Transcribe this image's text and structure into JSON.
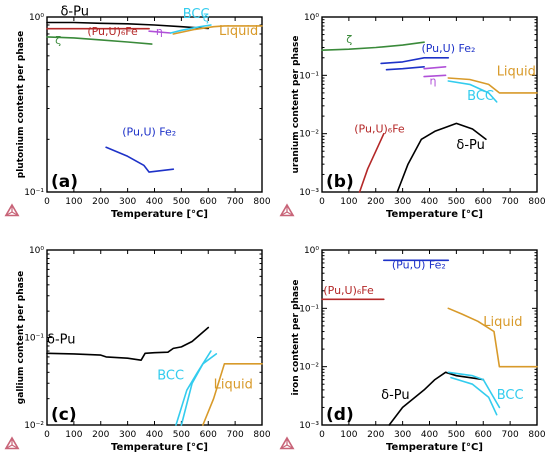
{
  "colors": {
    "delta_pu": "#000000",
    "bcc": "#33ccee",
    "liquid": "#d89a2a",
    "pu_u_6fe": "#b42828",
    "pu_u_fe2": "#1e32c8",
    "eta": "#b050d8",
    "zeta": "#3a8a3a",
    "logo": "#c86478"
  },
  "logo_icon": "thermo-calc-triangle-icon",
  "chart_data": [
    {
      "type": "line",
      "panel": "(a)",
      "xlabel": "Temperature [°C]",
      "ylabel": "plutonium content per phase",
      "xlim": [
        0,
        800
      ],
      "ylim": [
        0.1,
        1
      ],
      "yscale": "log",
      "xticks": [
        0,
        100,
        200,
        300,
        400,
        500,
        600,
        700,
        800
      ],
      "yticks": [
        {
          "v": 1,
          "label": "10⁰"
        },
        {
          "v": 0.1,
          "label": "10⁻¹"
        }
      ],
      "series": [
        {
          "key": "delta_pu",
          "points": [
            [
              0,
              0.93
            ],
            [
              100,
              0.93
            ],
            [
              200,
              0.92
            ],
            [
              300,
              0.915
            ],
            [
              400,
              0.9
            ],
            [
              500,
              0.88
            ],
            [
              600,
              0.86
            ]
          ]
        },
        {
          "key": "pu_u_6fe",
          "points": [
            [
              0,
              0.857
            ],
            [
              380,
              0.857
            ]
          ]
        },
        {
          "key": "eta",
          "points": [
            [
              380,
              0.83
            ],
            [
              460,
              0.81
            ]
          ]
        },
        {
          "key": "zeta",
          "points": [
            [
              0,
              0.77
            ],
            [
              100,
              0.76
            ],
            [
              200,
              0.74
            ],
            [
              300,
              0.72
            ],
            [
              390,
              0.7
            ]
          ]
        },
        {
          "key": "bcc",
          "points": [
            [
              460,
              0.81
            ],
            [
              500,
              0.84
            ],
            [
              570,
              0.88
            ],
            [
              610,
              0.9
            ]
          ]
        },
        {
          "key": "liquid",
          "points": [
            [
              470,
              0.8
            ],
            [
              550,
              0.85
            ],
            [
              620,
              0.88
            ],
            [
              660,
              0.89
            ],
            [
              800,
              0.89
            ]
          ]
        },
        {
          "key": "pu_u_fe2",
          "points": [
            [
              220,
              0.18
            ],
            [
              300,
              0.16
            ],
            [
              360,
              0.142
            ],
            [
              380,
              0.13
            ],
            [
              470,
              0.135
            ]
          ]
        }
      ],
      "annotations": [
        {
          "text": "δ-Pu",
          "key": "delta_pu",
          "x": 50,
          "y": 1.02,
          "size": "big"
        },
        {
          "text": "BCC",
          "key": "bcc",
          "x": 505,
          "y": 0.99,
          "size": "big"
        },
        {
          "text": "ζ",
          "key": "bcc",
          "x": 580,
          "y": 0.94,
          "size": "normal"
        },
        {
          "text": "(Pu,U)₆Fe",
          "key": "pu_u_6fe",
          "x": 150,
          "y": 0.79,
          "size": "normal"
        },
        {
          "text": "η",
          "key": "eta",
          "x": 405,
          "y": 0.79,
          "size": "normal"
        },
        {
          "text": "Liquid",
          "key": "liquid",
          "x": 640,
          "y": 0.79,
          "size": "big"
        },
        {
          "text": "ζ",
          "key": "zeta",
          "x": 30,
          "y": 0.7,
          "size": "normal"
        },
        {
          "text": "(Pu,U) Fe₂",
          "key": "pu_u_fe2",
          "x": 280,
          "y": 0.21,
          "size": "normal"
        }
      ]
    },
    {
      "type": "line",
      "panel": "(b)",
      "xlabel": "Temperature [°C]",
      "ylabel": "uranium content per phase",
      "xlim": [
        0,
        800
      ],
      "ylim": [
        0.001,
        1
      ],
      "yscale": "log",
      "xticks": [
        0,
        100,
        200,
        300,
        400,
        500,
        600,
        700,
        800
      ],
      "yticks": [
        {
          "v": 1,
          "label": "10⁰"
        },
        {
          "v": 0.1,
          "label": "10⁻¹"
        },
        {
          "v": 0.01,
          "label": "10⁻²"
        },
        {
          "v": 0.001,
          "label": "10⁻³"
        }
      ],
      "series": [
        {
          "key": "zeta",
          "points": [
            [
              0,
              0.27
            ],
            [
              100,
              0.28
            ],
            [
              200,
              0.3
            ],
            [
              300,
              0.33
            ],
            [
              380,
              0.37
            ]
          ]
        },
        {
          "key": "pu_u_fe2",
          "points": [
            [
              220,
              0.16
            ],
            [
              300,
              0.17
            ],
            [
              380,
              0.2
            ],
            [
              470,
              0.2
            ]
          ]
        },
        {
          "key": "pu_u_fe2",
          "points": [
            [
              240,
              0.125
            ],
            [
              300,
              0.13
            ],
            [
              380,
              0.14
            ]
          ]
        },
        {
          "key": "eta",
          "points": [
            [
              380,
              0.13
            ],
            [
              460,
              0.14
            ]
          ]
        },
        {
          "key": "eta",
          "points": [
            [
              380,
              0.095
            ],
            [
              460,
              0.1
            ]
          ]
        },
        {
          "key": "liquid",
          "points": [
            [
              470,
              0.09
            ],
            [
              550,
              0.085
            ],
            [
              620,
              0.07
            ],
            [
              660,
              0.05
            ],
            [
              800,
              0.05
            ]
          ]
        },
        {
          "key": "bcc",
          "points": [
            [
              470,
              0.08
            ],
            [
              550,
              0.07
            ],
            [
              620,
              0.05
            ],
            [
              650,
              0.035
            ]
          ]
        },
        {
          "key": "pu_u_6fe",
          "points": [
            [
              140,
              0.001
            ],
            [
              170,
              0.0025
            ],
            [
              200,
              0.005
            ],
            [
              230,
              0.01
            ]
          ]
        },
        {
          "key": "delta_pu",
          "points": [
            [
              280,
              0.001
            ],
            [
              320,
              0.003
            ],
            [
              370,
              0.008
            ],
            [
              420,
              0.011
            ],
            [
              500,
              0.015
            ],
            [
              560,
              0.012
            ],
            [
              610,
              0.008
            ]
          ]
        }
      ],
      "annotations": [
        {
          "text": "ζ",
          "key": "zeta",
          "x": 90,
          "y": 0.36,
          "size": "normal"
        },
        {
          "text": "(Pu,U) Fe₂",
          "key": "pu_u_fe2",
          "x": 370,
          "y": 0.25,
          "size": "normal"
        },
        {
          "text": "Liquid",
          "key": "liquid",
          "x": 650,
          "y": 0.1,
          "size": "big"
        },
        {
          "text": "η",
          "key": "eta",
          "x": 400,
          "y": 0.07,
          "size": "normal"
        },
        {
          "text": "BCC",
          "key": "bcc",
          "x": 540,
          "y": 0.038,
          "size": "big"
        },
        {
          "text": "(Pu,U)₆Fe",
          "key": "pu_u_6fe",
          "x": 120,
          "y": 0.0105,
          "size": "normal"
        },
        {
          "text": "δ-Pu",
          "key": "delta_pu",
          "x": 500,
          "y": 0.0055,
          "size": "big"
        }
      ]
    },
    {
      "type": "line",
      "panel": "(c)",
      "xlabel": "Temperature [°C]",
      "ylabel": "gallium content per phase",
      "xlim": [
        0,
        800
      ],
      "ylim": [
        0.01,
        1
      ],
      "yscale": "log",
      "xticks": [
        0,
        100,
        200,
        300,
        400,
        500,
        600,
        700,
        800
      ],
      "yticks": [
        {
          "v": 1,
          "label": "10⁰"
        },
        {
          "v": 0.1,
          "label": "10⁻¹"
        },
        {
          "v": 0.01,
          "label": "10⁻²"
        }
      ],
      "series": [
        {
          "key": "delta_pu",
          "points": [
            [
              0,
              0.066
            ],
            [
              100,
              0.065
            ],
            [
              200,
              0.063
            ],
            [
              220,
              0.06
            ],
            [
              300,
              0.058
            ],
            [
              350,
              0.055
            ],
            [
              365,
              0.066
            ],
            [
              400,
              0.067
            ],
            [
              450,
              0.068
            ],
            [
              470,
              0.075
            ],
            [
              500,
              0.078
            ],
            [
              540,
              0.09
            ],
            [
              600,
              0.13
            ]
          ]
        },
        {
          "key": "bcc",
          "points": [
            [
              480,
              0.01
            ],
            [
              520,
              0.025
            ],
            [
              560,
              0.04
            ],
            [
              610,
              0.07
            ]
          ]
        },
        {
          "key": "bcc",
          "points": [
            [
              500,
              0.01
            ],
            [
              540,
              0.03
            ],
            [
              580,
              0.05
            ],
            [
              630,
              0.065
            ]
          ]
        },
        {
          "key": "liquid",
          "points": [
            [
              580,
              0.01
            ],
            [
              620,
              0.02
            ],
            [
              660,
              0.05
            ],
            [
              800,
              0.05
            ]
          ]
        }
      ],
      "annotations": [
        {
          "text": "δ-Pu",
          "key": "delta_pu",
          "x": 0,
          "y": 0.085,
          "size": "big"
        },
        {
          "text": "BCC",
          "key": "bcc",
          "x": 410,
          "y": 0.033,
          "size": "big"
        },
        {
          "text": "Liquid",
          "key": "liquid",
          "x": 620,
          "y": 0.026,
          "size": "big"
        }
      ]
    },
    {
      "type": "line",
      "panel": "(d)",
      "xlabel": "Temperature [°C]",
      "ylabel": "iron content per phase",
      "xlim": [
        0,
        800
      ],
      "ylim": [
        0.001,
        1
      ],
      "yscale": "log",
      "xticks": [
        0,
        100,
        200,
        300,
        400,
        500,
        600,
        700,
        800
      ],
      "yticks": [
        {
          "v": 1,
          "label": "10⁰"
        },
        {
          "v": 0.1,
          "label": "10⁻¹"
        },
        {
          "v": 0.01,
          "label": "10⁻²"
        },
        {
          "v": 0.001,
          "label": "10⁻³"
        }
      ],
      "series": [
        {
          "key": "pu_u_fe2",
          "points": [
            [
              230,
              0.667
            ],
            [
              470,
              0.667
            ]
          ]
        },
        {
          "key": "pu_u_6fe",
          "points": [
            [
              0,
              0.143
            ],
            [
              230,
              0.143
            ]
          ]
        },
        {
          "key": "liquid",
          "points": [
            [
              470,
              0.1
            ],
            [
              520,
              0.08
            ],
            [
              580,
              0.06
            ],
            [
              640,
              0.04
            ],
            [
              660,
              0.01
            ],
            [
              800,
              0.01
            ]
          ]
        },
        {
          "key": "delta_pu",
          "points": [
            [
              250,
              0.001
            ],
            [
              300,
              0.002
            ],
            [
              380,
              0.004
            ],
            [
              420,
              0.006
            ],
            [
              460,
              0.008
            ],
            [
              500,
              0.007
            ],
            [
              600,
              0.006
            ]
          ]
        },
        {
          "key": "bcc",
          "points": [
            [
              470,
              0.008
            ],
            [
              560,
              0.007
            ],
            [
              600,
              0.006
            ],
            [
              660,
              0.002
            ]
          ]
        },
        {
          "key": "bcc",
          "points": [
            [
              480,
              0.0065
            ],
            [
              560,
              0.005
            ],
            [
              620,
              0.003
            ],
            [
              650,
              0.0015
            ]
          ]
        }
      ],
      "annotations": [
        {
          "text": "(Pu,U) Fe₂",
          "key": "pu_u_fe2",
          "x": 260,
          "y": 0.48,
          "size": "normal"
        },
        {
          "text": "(Pu,U)₆Fe",
          "key": "pu_u_6fe",
          "x": 5,
          "y": 0.175,
          "size": "normal"
        },
        {
          "text": "Liquid",
          "key": "liquid",
          "x": 600,
          "y": 0.05,
          "size": "big"
        },
        {
          "text": "δ-Pu",
          "key": "delta_pu",
          "x": 220,
          "y": 0.0028,
          "size": "big"
        },
        {
          "text": "BCC",
          "key": "bcc",
          "x": 650,
          "y": 0.0028,
          "size": "big"
        }
      ]
    }
  ]
}
